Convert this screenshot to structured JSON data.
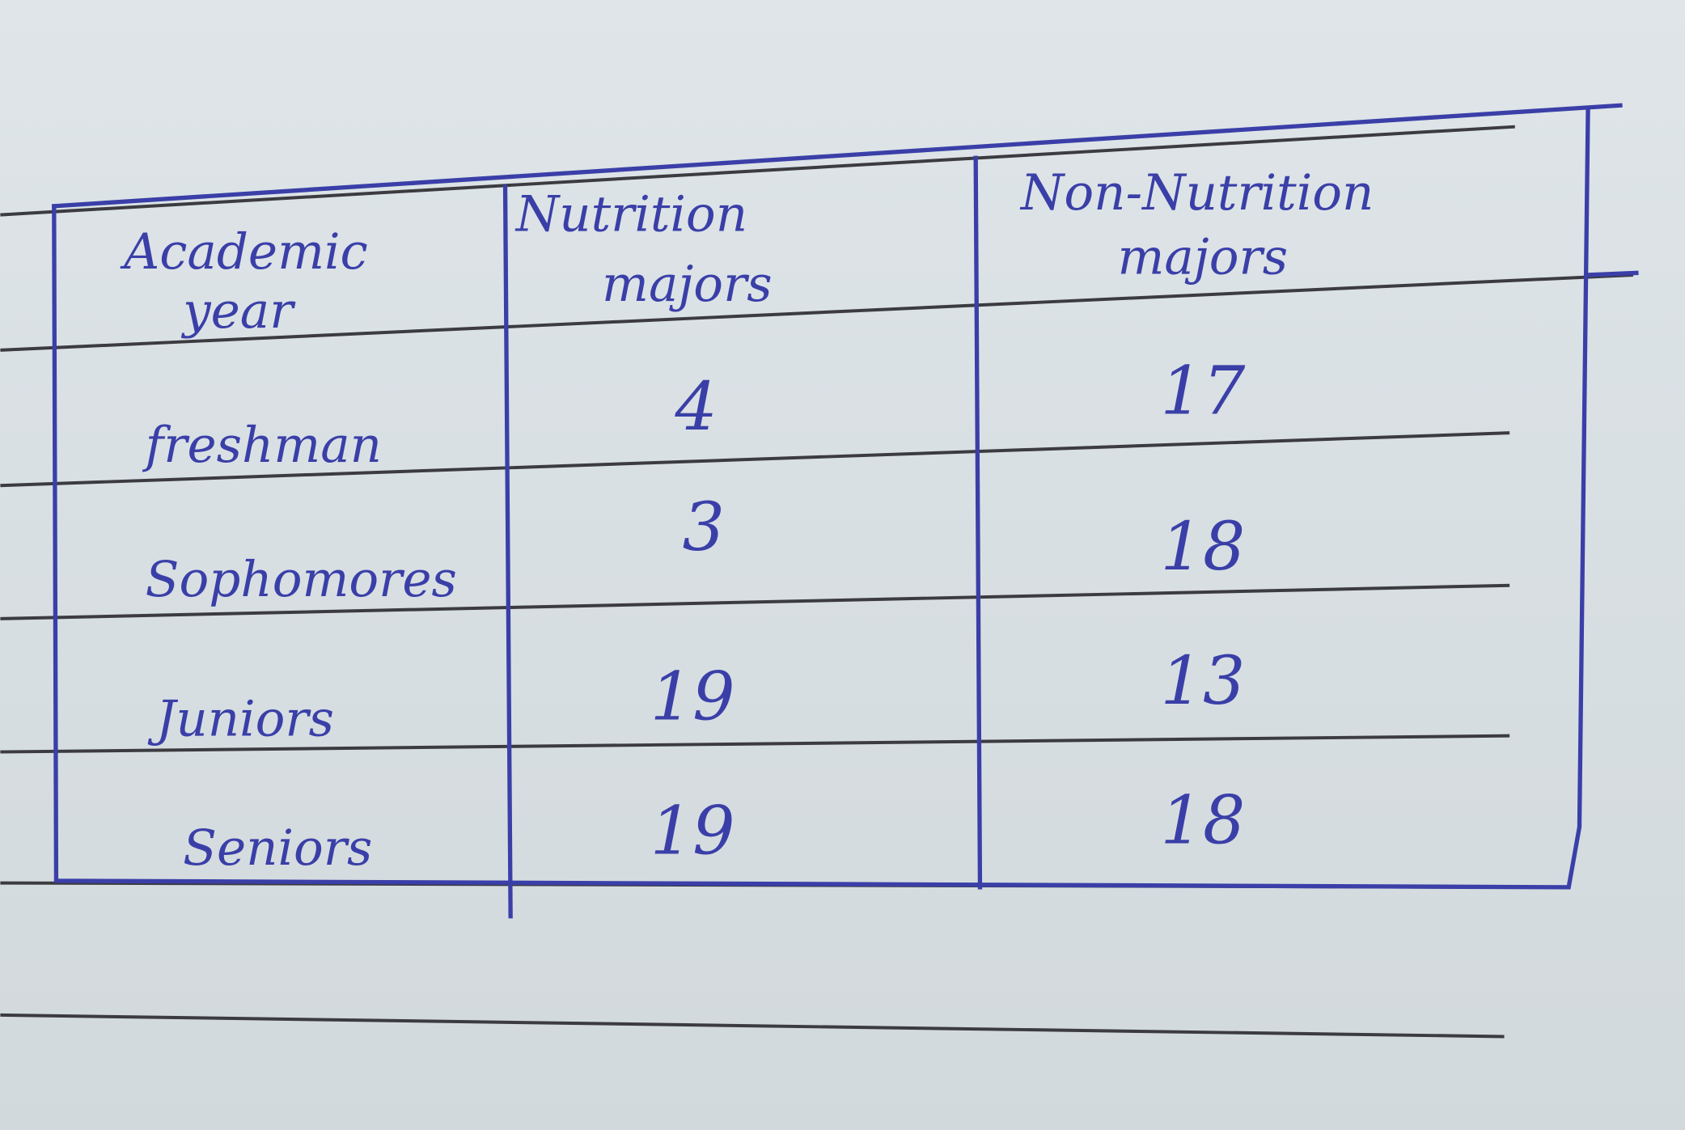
{
  "table": {
    "headers": [
      "Academic year",
      "Nutrition majors",
      "Non-Nutrition majors"
    ],
    "header_lines": [
      [
        "Academic",
        "year"
      ],
      [
        "Nutrition",
        "majors"
      ],
      [
        "Non-Nutrition",
        "majors"
      ]
    ],
    "rows": [
      {
        "year": "freshman",
        "nutrition": "4",
        "non_nutrition": "17"
      },
      {
        "year": "Sophomores",
        "nutrition": "3",
        "non_nutrition": "18"
      },
      {
        "year": "Juniors",
        "nutrition": "19",
        "non_nutrition": "13"
      },
      {
        "year": "Seniors",
        "nutrition": "19",
        "non_nutrition": "18"
      }
    ]
  },
  "colors": {
    "ink": "#3a3fa8",
    "ruled_line": "#3b3b40",
    "paper": "#d9e0e4"
  }
}
